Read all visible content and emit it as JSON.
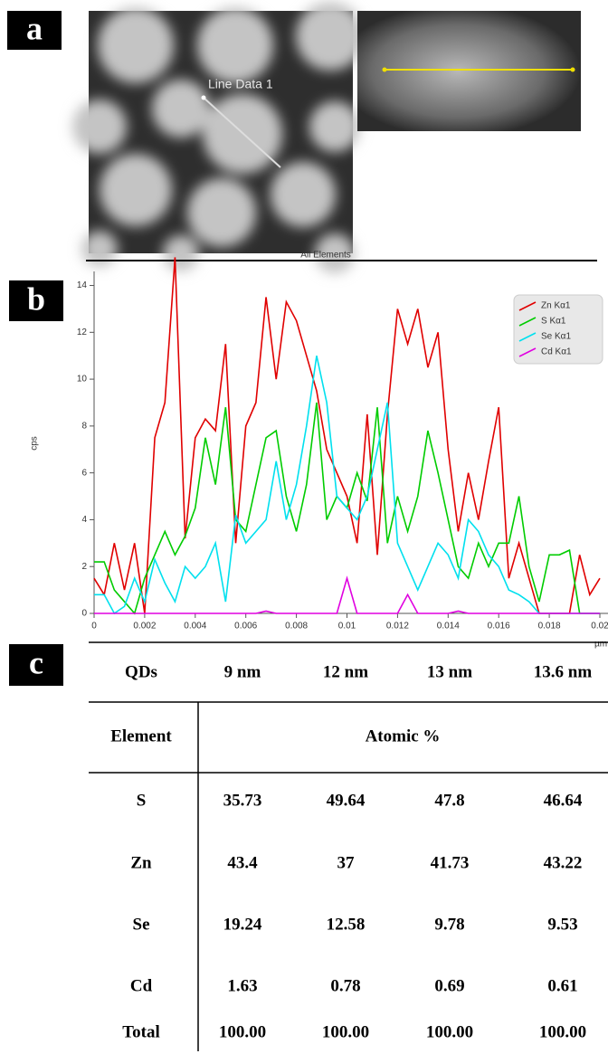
{
  "panel_labels": [
    "a",
    "b",
    "c"
  ],
  "image_annotation": "Line Data 1",
  "chart_data": {
    "type": "line",
    "title": "All Elements",
    "y_label": "cps",
    "x_label": "µm",
    "x": [
      0,
      0.0004,
      0.0008,
      0.0012,
      0.0016,
      0.002,
      0.0024,
      0.0028,
      0.0032,
      0.0036,
      0.004,
      0.0044,
      0.0048,
      0.0052,
      0.0056,
      0.006,
      0.0064,
      0.0068,
      0.0072,
      0.0076,
      0.008,
      0.0084,
      0.0088,
      0.0092,
      0.0096,
      0.01,
      0.0104,
      0.0108,
      0.0112,
      0.0116,
      0.012,
      0.0124,
      0.0128,
      0.0132,
      0.0136,
      0.014,
      0.0144,
      0.0148,
      0.0152,
      0.0156,
      0.016,
      0.0164,
      0.0168,
      0.0172,
      0.0176,
      0.018,
      0.0184,
      0.0188,
      0.0192,
      0.0196,
      0.02
    ],
    "series": [
      {
        "name": "Zn Kα1",
        "color": "#e00000",
        "values": [
          1.5,
          0.8,
          3,
          1,
          3,
          0,
          7.5,
          9,
          15.2,
          3.2,
          7.5,
          8.3,
          7.8,
          11.5,
          3,
          8,
          9,
          13.5,
          10,
          13.3,
          12.5,
          11,
          9.5,
          7,
          6,
          5,
          3,
          8.5,
          2.5,
          8.5,
          13,
          11.5,
          13,
          10.5,
          12,
          7,
          3.5,
          6,
          4,
          6.5,
          8.8,
          1.5,
          3,
          1.5,
          0,
          0,
          0,
          0,
          2.5,
          0.8,
          1.5
        ]
      },
      {
        "name": "S Kα1",
        "color": "#00cc00",
        "values": [
          2.2,
          2.2,
          1,
          0.5,
          0,
          1.5,
          2.5,
          3.5,
          2.5,
          3.3,
          4.5,
          7.5,
          5.5,
          8.8,
          4,
          3.5,
          5.5,
          7.5,
          7.8,
          5,
          3.5,
          5.5,
          9,
          4,
          5,
          4.5,
          6,
          4.8,
          8.8,
          3,
          5,
          3.5,
          5,
          7.8,
          6,
          4,
          2,
          1.5,
          3,
          2,
          3,
          3,
          5,
          2,
          0.5,
          2.5,
          2.5,
          2.7,
          0,
          0,
          0
        ]
      },
      {
        "name": "Se Kα1",
        "color": "#00e0ee",
        "values": [
          0.8,
          0.8,
          0,
          0.3,
          1.5,
          0.5,
          2.3,
          1.3,
          0.5,
          2,
          1.5,
          2,
          3,
          0.5,
          4.2,
          3,
          3.5,
          4,
          6.5,
          4,
          5.5,
          8,
          11,
          9,
          5,
          4.5,
          4,
          5,
          7,
          9,
          3,
          2,
          1,
          2,
          3,
          2.5,
          1.5,
          4,
          3.5,
          2.5,
          2,
          1,
          0.8,
          0.5,
          0,
          0,
          0,
          0,
          0,
          0,
          0
        ]
      },
      {
        "name": "Cd Kα1",
        "color": "#e000e0",
        "values": [
          0,
          0,
          0,
          0,
          0,
          0,
          0,
          0,
          0,
          0,
          0,
          0,
          0,
          0,
          0,
          0,
          0,
          0.1,
          0,
          0,
          0,
          0,
          0,
          0,
          0,
          1.5,
          0,
          0,
          0,
          0,
          0,
          0.8,
          0,
          0,
          0,
          0,
          0.1,
          0,
          0,
          0,
          0,
          0,
          0,
          0,
          0,
          0,
          0,
          0,
          0,
          0,
          0
        ]
      }
    ],
    "xlim": [
      0,
      0.02
    ],
    "ylim": [
      0,
      14.6
    ],
    "xticks": [
      0,
      0.002,
      0.004,
      0.006,
      0.008,
      0.01,
      0.012,
      0.014,
      0.016,
      0.018,
      0.02
    ],
    "yticks": [
      0,
      2,
      4,
      6,
      8,
      10,
      12,
      14
    ],
    "legend": "upper-right"
  },
  "table": {
    "header": [
      "QDs",
      "9 nm",
      "12 nm",
      "13 nm",
      "13.6 nm"
    ],
    "subheader": [
      "Element",
      "Atomic %"
    ],
    "rows": [
      [
        "S",
        "35.73",
        "49.64",
        "47.8",
        "46.64"
      ],
      [
        "Zn",
        "43.4",
        "37",
        "41.73",
        "43.22"
      ],
      [
        "Se",
        "19.24",
        "12.58",
        "9.78",
        "9.53"
      ],
      [
        "Cd",
        "1.63",
        "0.78",
        "0.69",
        "0.61"
      ],
      [
        "Total",
        "100.00",
        "100.00",
        "100.00",
        "100.00"
      ]
    ]
  }
}
